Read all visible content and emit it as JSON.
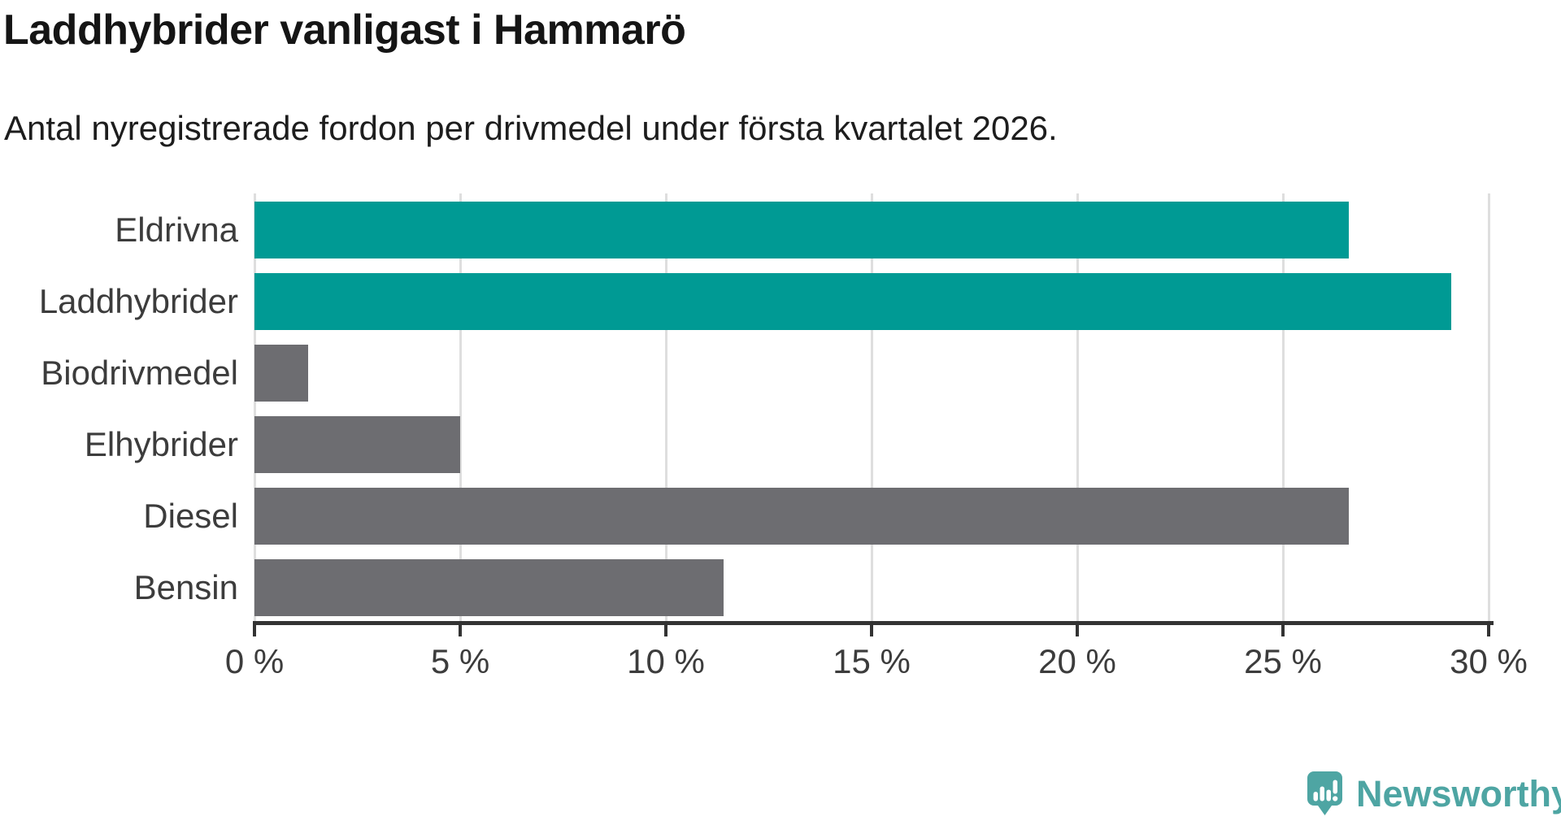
{
  "header": {
    "title": "Laddhybrider vanligast i Hammarö",
    "subtitle": "Antal nyregistrerade fordon per drivmedel under första kvartalet 2026."
  },
  "chart_data": {
    "type": "bar",
    "orientation": "horizontal",
    "title": "Laddhybrider vanligast i Hammarö",
    "subtitle": "Antal nyregistrerade fordon per drivmedel under första kvartalet 2026.",
    "categories": [
      "Eldrivna",
      "Laddhybrider",
      "Biodrivmedel",
      "Elhybrider",
      "Diesel",
      "Bensin"
    ],
    "values": [
      26.6,
      29.1,
      1.3,
      5.0,
      26.6,
      11.4
    ],
    "unit": "%",
    "xlim": [
      0,
      30
    ],
    "xticks": [
      0,
      5,
      10,
      15,
      20,
      25,
      30
    ],
    "xtick_labels": [
      "0 %",
      "5 %",
      "10 %",
      "15 %",
      "20 %",
      "25 %",
      "30 %"
    ],
    "bar_colors": [
      "#009a94",
      "#009a94",
      "#6d6d71",
      "#6d6d71",
      "#6d6d71",
      "#6d6d71"
    ],
    "highlight_color": "#009a94",
    "default_color": "#6d6d71",
    "grid": true,
    "legend": "none"
  },
  "colors": {
    "accent_teal": "#009a94",
    "neutral_gray": "#6d6d71",
    "axis": "#333333",
    "gridline": "#dedede",
    "logo_teal": "#4ea5a3"
  },
  "branding": {
    "logo_text": "Newsworthy"
  }
}
